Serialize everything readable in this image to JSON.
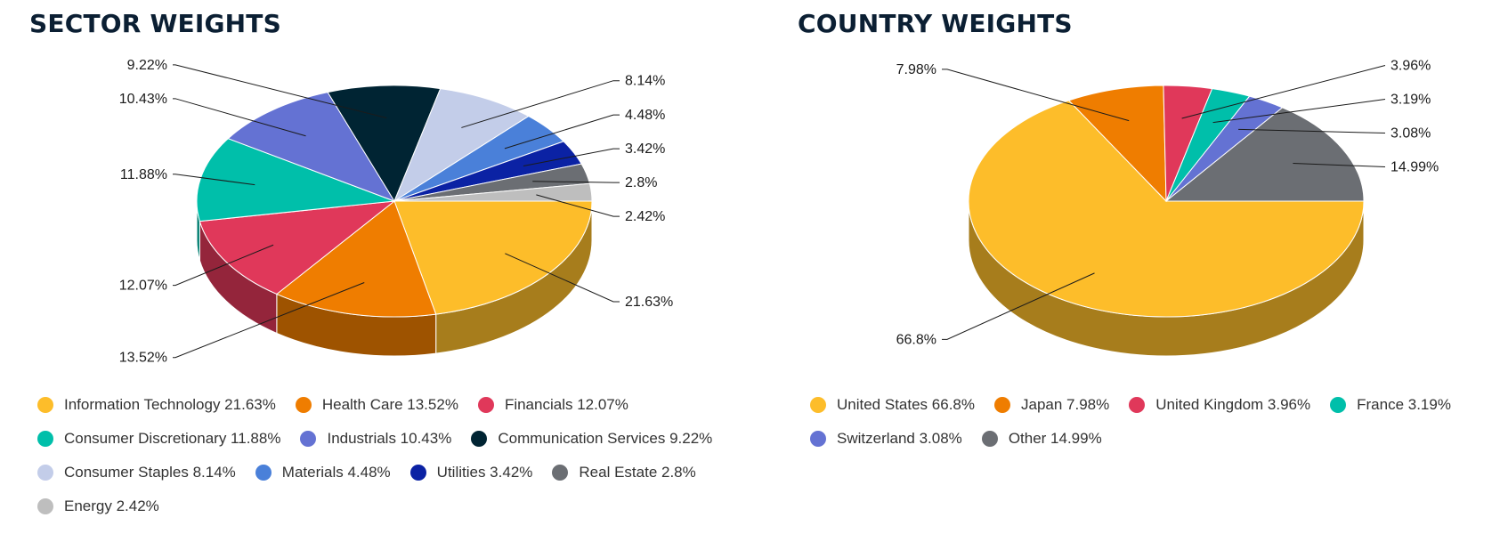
{
  "chart_data": [
    {
      "type": "pie",
      "title": "SECTOR WEIGHTS",
      "unit": "%",
      "legend_position": "bottom",
      "slices": [
        {
          "label": "Information Technology",
          "value": 21.63,
          "color": "#fdbd2a"
        },
        {
          "label": "Health Care",
          "value": 13.52,
          "color": "#ef7d00"
        },
        {
          "label": "Financials",
          "value": 12.07,
          "color": "#e0385a"
        },
        {
          "label": "Consumer Discretionary",
          "value": 11.88,
          "color": "#00bfaa"
        },
        {
          "label": "Industrials",
          "value": 10.43,
          "color": "#6472d3"
        },
        {
          "label": "Communication Services",
          "value": 9.22,
          "color": "#002433"
        },
        {
          "label": "Consumer Staples",
          "value": 8.14,
          "color": "#c3cde9"
        },
        {
          "label": "Materials",
          "value": 4.48,
          "color": "#4a80d9"
        },
        {
          "label": "Utilities",
          "value": 3.42,
          "color": "#0b22a4"
        },
        {
          "label": "Real Estate",
          "value": 2.8,
          "color": "#6b6e73"
        },
        {
          "label": "Energy",
          "value": 2.42,
          "color": "#bebebe"
        }
      ]
    },
    {
      "type": "pie",
      "title": "COUNTRY WEIGHTS",
      "unit": "%",
      "legend_position": "bottom",
      "slices": [
        {
          "label": "United States",
          "value": 66.8,
          "color": "#fdbd2a"
        },
        {
          "label": "Japan",
          "value": 7.98,
          "color": "#ef7d00"
        },
        {
          "label": "United Kingdom",
          "value": 3.96,
          "color": "#e0385a"
        },
        {
          "label": "France",
          "value": 3.19,
          "color": "#00bfaa"
        },
        {
          "label": "Switzerland",
          "value": 3.08,
          "color": "#6472d3"
        },
        {
          "label": "Other",
          "value": 14.99,
          "color": "#6b6e73"
        }
      ]
    }
  ]
}
